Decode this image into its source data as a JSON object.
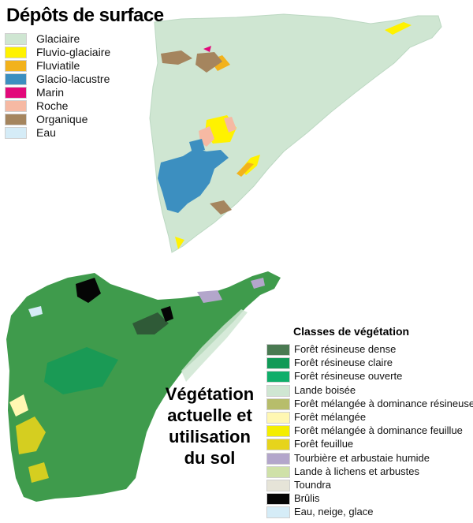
{
  "map_surface": {
    "title": "Dépôts de surface",
    "legend": [
      {
        "label": "Glaciaire",
        "color": "#cfe6d2"
      },
      {
        "label": "Fluvio-glaciaire",
        "color": "#fff200"
      },
      {
        "label": "Fluviatile",
        "color": "#f2b21c"
      },
      {
        "label": "Glacio-lacustre",
        "color": "#3c8fc0"
      },
      {
        "label": "Marin",
        "color": "#e2097a"
      },
      {
        "label": "Roche",
        "color": "#f6b9a3"
      },
      {
        "label": "Organique",
        "color": "#a5855e"
      },
      {
        "label": "Eau",
        "color": "#d5ecf7"
      }
    ]
  },
  "map_vegetation": {
    "title_lines": [
      "Végétation",
      "actuelle et",
      "utilisation",
      "du sol"
    ],
    "legend_title": "Classes de végétation",
    "legend": [
      {
        "label": "Forêt résineuse dense",
        "color": "#4a7a52"
      },
      {
        "label": "Forêt résineuse claire",
        "color": "#119a57"
      },
      {
        "label": "Forêt résineuse ouverte",
        "color": "#0fae6a"
      },
      {
        "label": "Lande boisée",
        "color": "#cfe6d2"
      },
      {
        "label": "Forêt mélangée à dominance résineuse",
        "color": "#b7bd6b"
      },
      {
        "label": "Forêt mélangée",
        "color": "#fff7b2"
      },
      {
        "label": "Forêt mélangée à dominance feuillue",
        "color": "#f4ee00"
      },
      {
        "label": "Forêt feuillue",
        "color": "#e6d41c"
      },
      {
        "label": "Tourbière et arbustaie humide",
        "color": "#b3a6cb"
      },
      {
        "label": "Lande à lichens et arbustes",
        "color": "#cfe1a8"
      },
      {
        "label": "Toundra",
        "color": "#e6e4d8"
      },
      {
        "label": "Brûlis",
        "color": "#050505"
      },
      {
        "label": "Eau, neige, glace",
        "color": "#d5ecf7"
      }
    ]
  }
}
